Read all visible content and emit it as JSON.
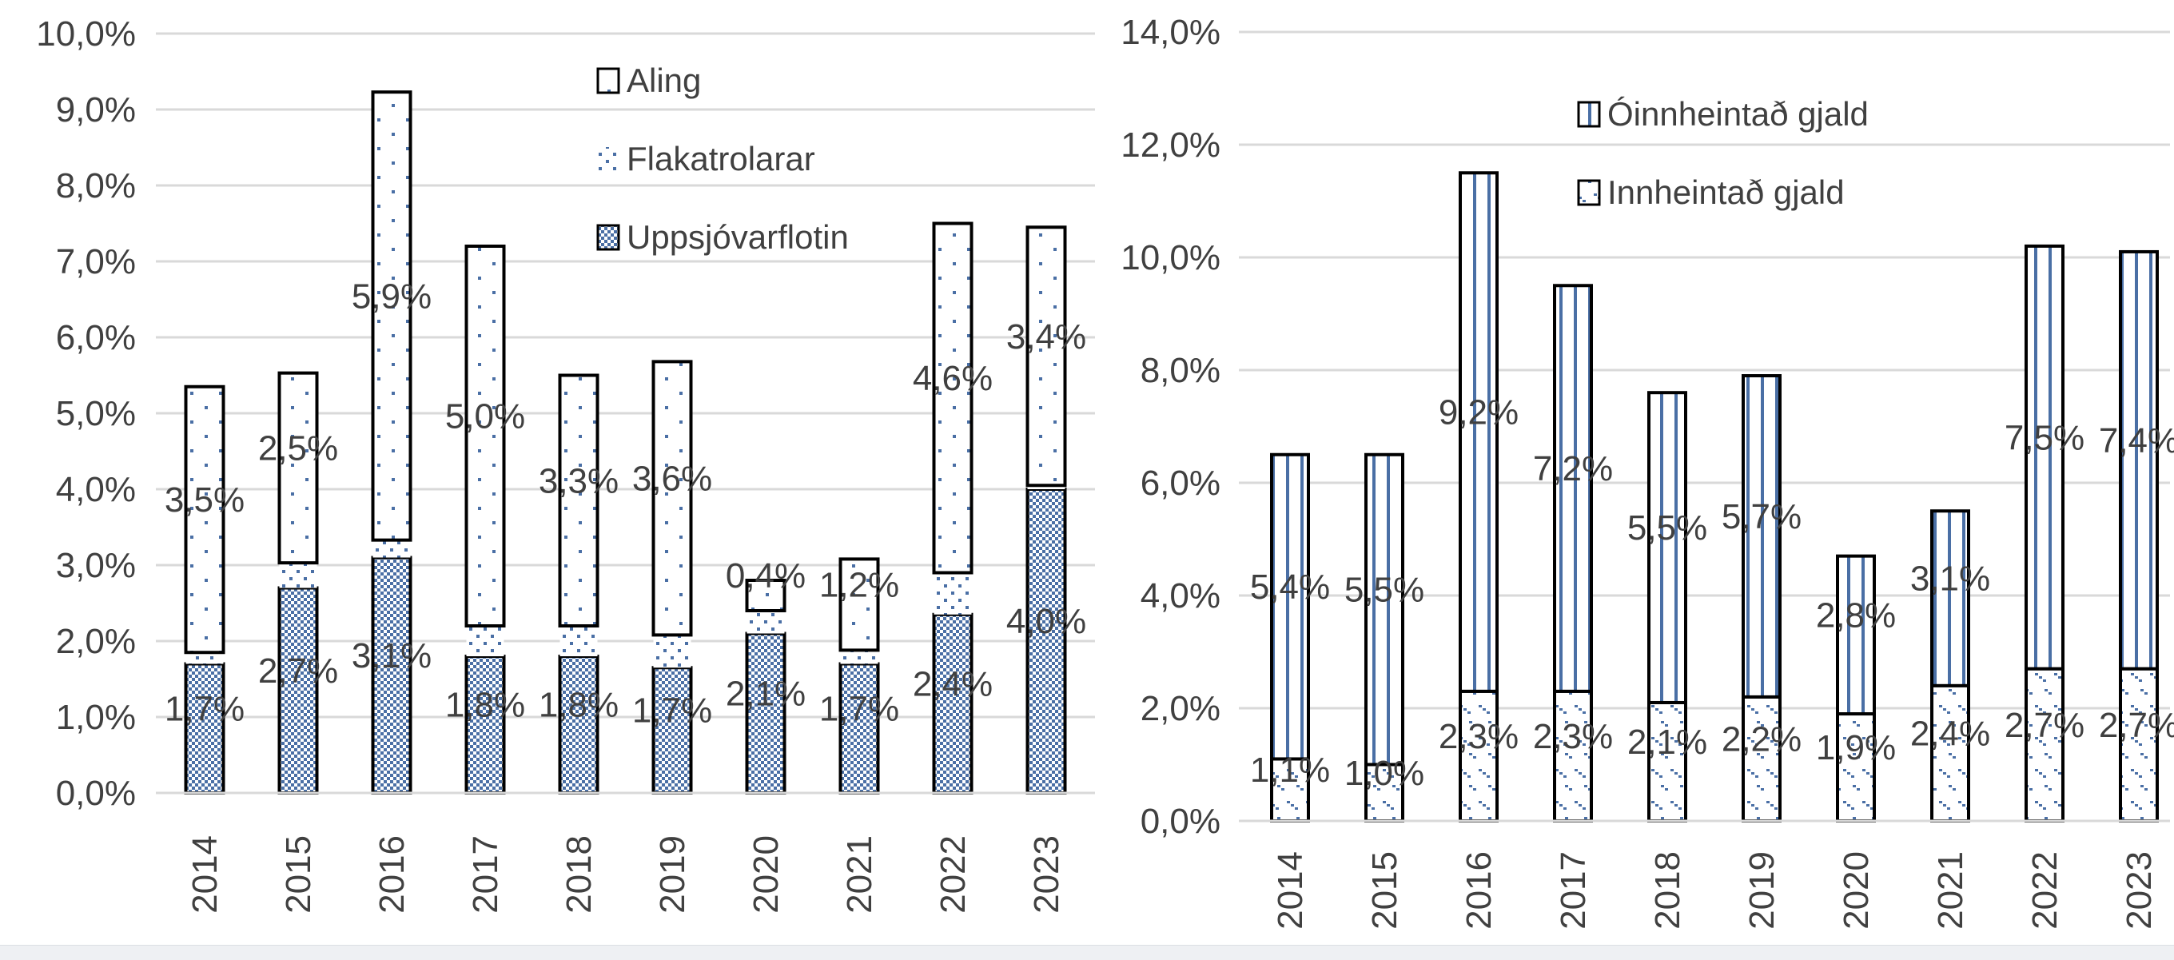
{
  "colors": {
    "pattern": "#4a6fa5",
    "grid": "#d9d9d9",
    "text": "#404040",
    "border": "#000000"
  },
  "chart_data": [
    {
      "type": "bar",
      "stacked": true,
      "title": "",
      "xlabel": "",
      "ylabel": "",
      "ylim": [
        0,
        10
      ],
      "yticks": [
        "0,0%",
        "1,0%",
        "2,0%",
        "3,0%",
        "4,0%",
        "5,0%",
        "6,0%",
        "7,0%",
        "8,0%",
        "9,0%",
        "10,0%"
      ],
      "grid": true,
      "legend_position": "top-right",
      "categories": [
        "2014",
        "2015",
        "2016",
        "2017",
        "2018",
        "2019",
        "2020",
        "2021",
        "2022",
        "2023"
      ],
      "series": [
        {
          "name": "Uppsjóvarflotin",
          "pattern": "checker",
          "border": true,
          "labeled": true,
          "values": [
            1.7,
            2.7,
            3.1,
            1.8,
            1.8,
            1.65,
            2.1,
            1.7,
            2.35,
            4.0
          ],
          "labels": [
            "1,7%",
            "2,7%",
            "3,1%",
            "1,8%",
            "1,8%",
            "1,7%",
            "2,1%",
            "1,7%",
            "2,4%",
            "4,0%"
          ]
        },
        {
          "name": "Flakatrolarar",
          "pattern": "dots",
          "border": false,
          "labeled": false,
          "values": [
            0.15,
            0.33,
            0.23,
            0.4,
            0.4,
            0.43,
            0.3,
            0.18,
            0.55,
            0.05
          ]
        },
        {
          "name": "Aling",
          "pattern": "sparse",
          "border": true,
          "labeled": true,
          "values": [
            3.5,
            2.5,
            5.9,
            5.0,
            3.3,
            3.6,
            0.4,
            1.2,
            4.6,
            3.4
          ],
          "labels": [
            "3,5%",
            "2,5%",
            "5,9%",
            "5,0%",
            "3,3%",
            "3,6%",
            "0,4%",
            "1,2%",
            "4,6%",
            "3,4%"
          ]
        }
      ]
    },
    {
      "type": "bar",
      "stacked": true,
      "title": "",
      "xlabel": "",
      "ylabel": "",
      "ylim": [
        0,
        14
      ],
      "yticks": [
        "0,0%",
        "2,0%",
        "4,0%",
        "6,0%",
        "8,0%",
        "10,0%",
        "12,0%",
        "14,0%"
      ],
      "grid": true,
      "legend_position": "top-right",
      "categories": [
        "2014",
        "2015",
        "2016",
        "2017",
        "2018",
        "2019",
        "2020",
        "2021",
        "2022",
        "2023"
      ],
      "series": [
        {
          "name": "Innheintað gjald",
          "pattern": "diagonal",
          "border": true,
          "labeled": true,
          "values": [
            1.1,
            1.0,
            2.3,
            2.3,
            2.1,
            2.2,
            1.9,
            2.4,
            2.7,
            2.7
          ],
          "labels": [
            "1,1%",
            "1,0%",
            "2,3%",
            "2,3%",
            "2,1%",
            "2,2%",
            "1,9%",
            "2,4%",
            "2,7%",
            "2,7%"
          ]
        },
        {
          "name": "Óinnheintað gjald",
          "pattern": "vstripes",
          "border": true,
          "labeled": true,
          "values": [
            5.4,
            5.5,
            9.2,
            7.2,
            5.5,
            5.7,
            2.8,
            3.1,
            7.5,
            7.4
          ],
          "labels": [
            "5,4%",
            "5,5%",
            "9,2%",
            "7,2%",
            "5,5%",
            "5,7%",
            "2,8%",
            "3,1%",
            "7,5%",
            "7,4%"
          ]
        }
      ],
      "legend_order": [
        1,
        0
      ]
    }
  ]
}
